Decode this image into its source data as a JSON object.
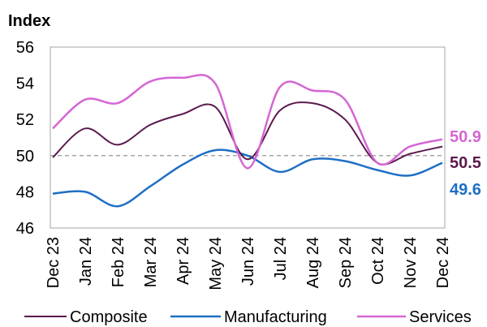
{
  "chart_data": {
    "type": "line",
    "ylabel": "Index",
    "ylim": [
      46,
      56
    ],
    "yticks": [
      46,
      48,
      50,
      52,
      54,
      56
    ],
    "reference_line": 50,
    "categories": [
      "Dec 23",
      "Jan 24",
      "Feb 24",
      "Mar 24",
      "Apr 24",
      "May 24",
      "Jun 24",
      "Jul 24",
      "Aug 24",
      "Sep 24",
      "Oct 24",
      "Nov 24",
      "Dec 24"
    ],
    "series": [
      {
        "name": "Composite",
        "color": "#5b1a4f",
        "values": [
          49.9,
          51.5,
          50.6,
          51.7,
          52.3,
          52.7,
          49.8,
          52.5,
          52.9,
          52.0,
          49.6,
          50.1,
          50.5
        ],
        "end_label": "50.5"
      },
      {
        "name": "Manufacturing",
        "color": "#1f6fc5",
        "values": [
          47.9,
          48.0,
          47.2,
          48.3,
          49.5,
          50.3,
          50.0,
          49.1,
          49.8,
          49.7,
          49.2,
          48.9,
          49.6
        ],
        "end_label": "49.6"
      },
      {
        "name": "Services",
        "color": "#d466d4",
        "values": [
          51.5,
          53.1,
          52.9,
          54.1,
          54.3,
          54.0,
          49.3,
          53.8,
          53.6,
          53.1,
          49.6,
          50.5,
          50.9
        ],
        "end_label": "50.9"
      }
    ]
  }
}
